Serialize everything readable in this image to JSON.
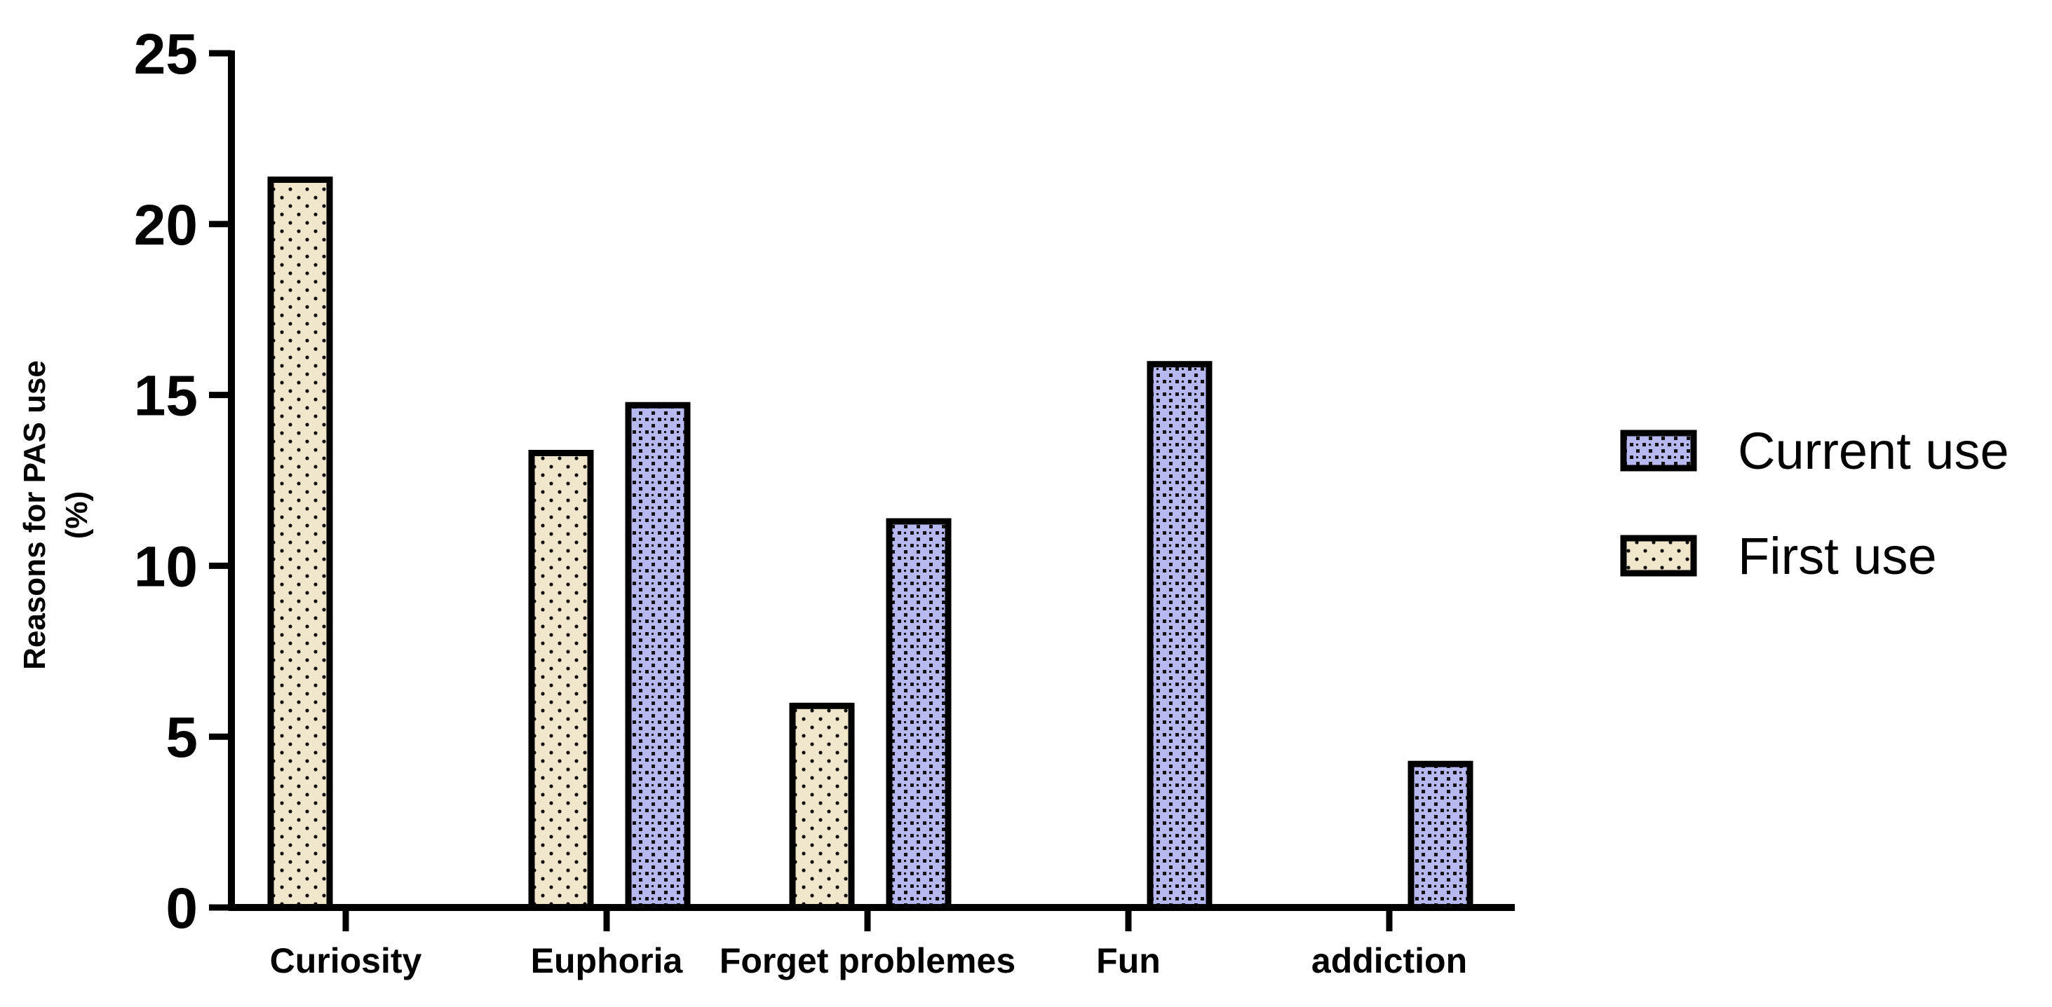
{
  "chart_data": {
    "type": "bar",
    "title": "",
    "xlabel": "",
    "ylabel_lines": [
      "Reasons for PAS use",
      "(%)"
    ],
    "ylim": [
      0,
      25
    ],
    "yticks": [
      0,
      5,
      10,
      15,
      20,
      25
    ],
    "grid": false,
    "legend_position": "right",
    "categories": [
      "Curiosity",
      "Euphoria",
      "Forget problemes",
      "Fun",
      "addiction"
    ],
    "series": [
      {
        "name": "First use",
        "color": "#efe6cc",
        "pattern": "dots",
        "values": [
          21.3,
          13.3,
          5.9,
          null,
          null
        ]
      },
      {
        "name": "Current use",
        "color": "#b8b8f0",
        "pattern": "dense-dots",
        "values": [
          null,
          14.7,
          11.3,
          15.9,
          4.2
        ]
      }
    ],
    "legend_order": [
      "Current use",
      "First use"
    ]
  }
}
